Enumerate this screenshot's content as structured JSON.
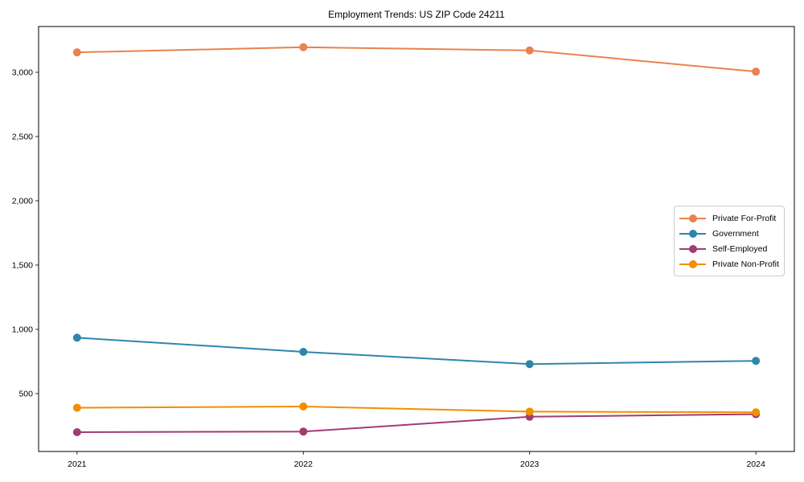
{
  "chart_data": {
    "type": "line",
    "title": "Employment Trends: US ZIP Code 24211",
    "xlabel": "",
    "ylabel": "",
    "x": [
      2021,
      2022,
      2023,
      2024
    ],
    "x_tick_labels": [
      "2021",
      "2022",
      "2023",
      "2024"
    ],
    "y_ticks": [
      500,
      1000,
      1500,
      2000,
      2500,
      3000
    ],
    "y_tick_labels": [
      "500",
      "1,000",
      "1,500",
      "2,000",
      "2,500",
      "3,000"
    ],
    "xlim": [
      2020.83,
      2024.17
    ],
    "ylim": [
      50,
      3356
    ],
    "grid": false,
    "legend_position": "center-right",
    "series": [
      {
        "name": "Private For-Profit",
        "color": "#E8824E",
        "values": [
          3155,
          3195,
          3170,
          3005
        ]
      },
      {
        "name": "Government",
        "color": "#2E86AB",
        "values": [
          935,
          825,
          730,
          755
        ]
      },
      {
        "name": "Self-Employed",
        "color": "#A23B72",
        "values": [
          200,
          205,
          320,
          340
        ]
      },
      {
        "name": "Private Non-Profit",
        "color": "#F18F01",
        "values": [
          390,
          400,
          360,
          355
        ]
      }
    ]
  }
}
